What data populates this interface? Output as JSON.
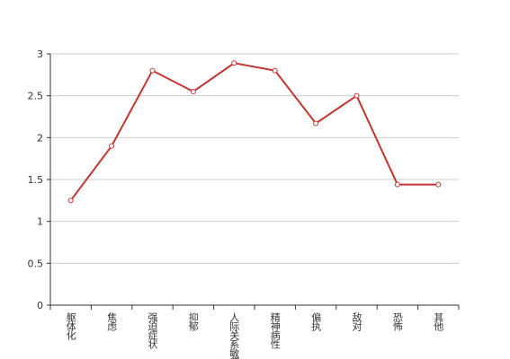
{
  "chart_data": {
    "type": "line",
    "categories": [
      "躯体化",
      "焦虑",
      "强迫症状",
      "抑郁",
      "人际关系敏感",
      "精神病性",
      "偏执",
      "敌对",
      "恐怖",
      "其他"
    ],
    "series": [
      {
        "color": "#c23531",
        "values": [
          1.25,
          1.9,
          2.8,
          2.55,
          2.89,
          2.8,
          2.17,
          2.5,
          1.44,
          1.44
        ]
      }
    ],
    "ylim": [
      0,
      3
    ],
    "yticks": [
      0,
      0.5,
      1,
      1.5,
      2,
      2.5,
      3
    ],
    "grid": true
  }
}
